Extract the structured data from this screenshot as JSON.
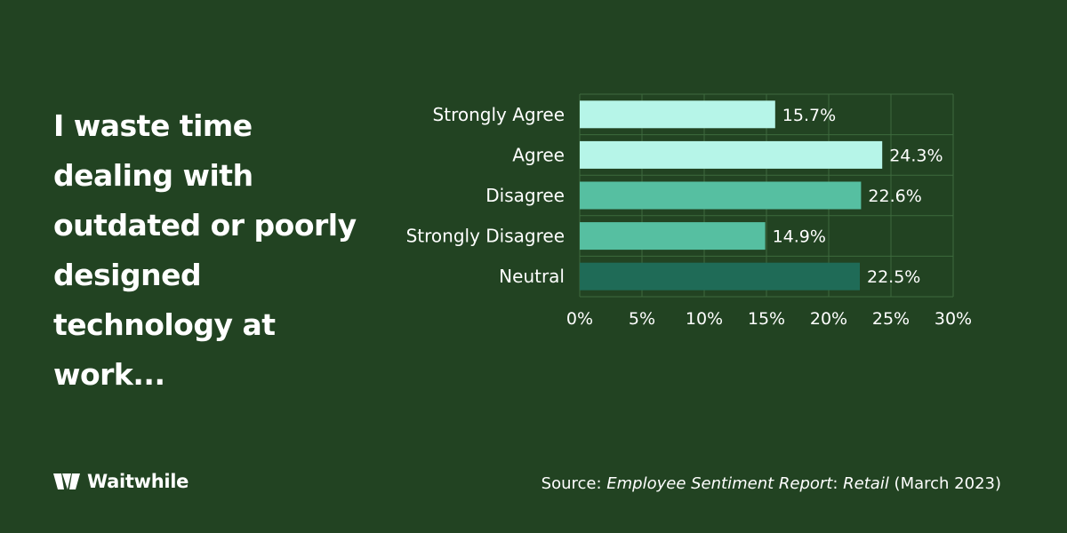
{
  "headline": "I waste time dealing with outdated or poorly designed technology at work...",
  "logo": {
    "text": "Waitwhile"
  },
  "source": {
    "prefix": "Source: ",
    "report": "Employee Sentiment Report",
    "sep": ": ",
    "sector": "Retail",
    "date": " (March 2023)"
  },
  "colors": {
    "background": "#224322",
    "light_bar": "#b6f5e8",
    "mid_bar": "#56bfa1",
    "dark_bar": "#1f6b57",
    "grid": "#3d6a3d",
    "text": "#ffffff"
  },
  "chart_data": {
    "type": "bar",
    "orientation": "horizontal",
    "categories": [
      "Strongly Agree",
      "Agree",
      "Disagree",
      "Strongly Disagree",
      "Neutral"
    ],
    "values": [
      15.7,
      24.3,
      22.6,
      14.9,
      22.5
    ],
    "value_labels": [
      "15.7%",
      "24.3%",
      "22.6%",
      "14.9%",
      "22.5%"
    ],
    "bar_colors": [
      "#b6f5e8",
      "#b6f5e8",
      "#56bfa1",
      "#56bfa1",
      "#1f6b57"
    ],
    "xlim": [
      0,
      30
    ],
    "xticks": [
      0,
      5,
      10,
      15,
      20,
      25,
      30
    ],
    "xtick_labels": [
      "0%",
      "5%",
      "10%",
      "15%",
      "20%",
      "25%",
      "30%"
    ],
    "grid": true
  }
}
